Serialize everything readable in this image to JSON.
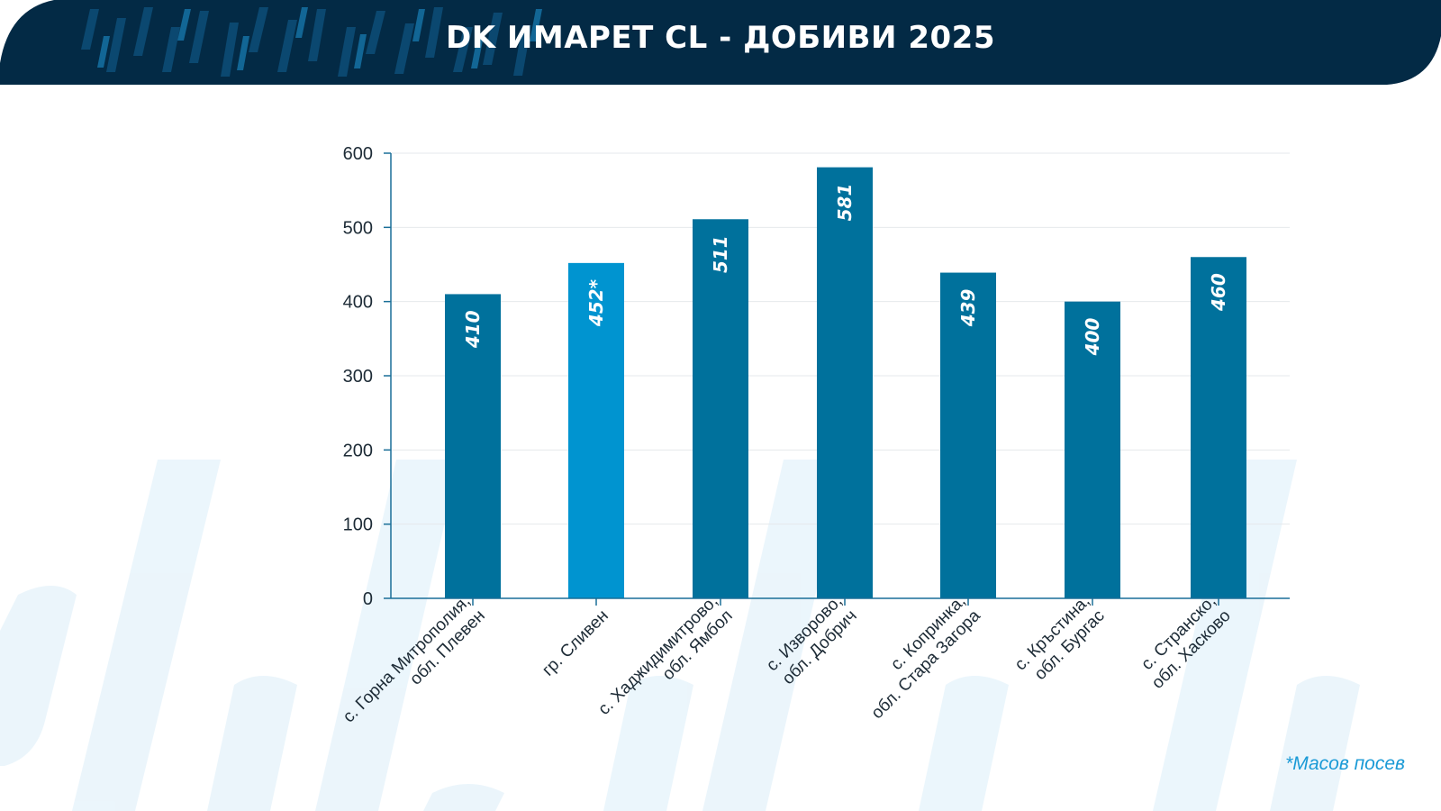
{
  "chart_data": {
    "type": "bar",
    "title": "DK ИМАРЕТ CL - ДОБИВИ 2025",
    "categories": [
      [
        "с. Горна Митрополия,",
        "обл. Плевен"
      ],
      [
        "гр. Сливен"
      ],
      [
        "с. Хаджидимитрово,",
        "обл. Ямбол"
      ],
      [
        "с. Изворово,",
        "обл. Добрич"
      ],
      [
        "с. Копринка,",
        "обл. Стара Загора"
      ],
      [
        "с. Кръстина,",
        "обл. Бургас"
      ],
      [
        "с. Странско,",
        "обл. Хасково"
      ]
    ],
    "values": [
      410,
      452,
      511,
      581,
      439,
      400,
      460
    ],
    "value_labels": [
      "410",
      "452*",
      "511",
      "581",
      "439",
      "400",
      "460"
    ],
    "highlighted_index": 1,
    "ylim": [
      0,
      600
    ],
    "yticks": [
      0,
      100,
      200,
      300,
      400,
      500,
      600
    ],
    "xlabel": "",
    "ylabel": "",
    "grid": true,
    "colors": {
      "bar": "#00719c",
      "bar_highlight": "#0094d0",
      "axis": "#1a6f98",
      "header": "#032a45",
      "footnote": "#1a9ad6"
    }
  },
  "footnote": "*Масов посев"
}
